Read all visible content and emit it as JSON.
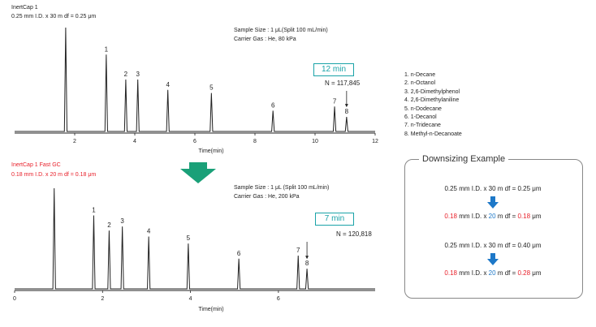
{
  "chart_data": [
    {
      "type": "line",
      "title": "InertCap 1",
      "subtitle": "0.25 mm I.D. x 30 m   df = 0.25 μm",
      "conditions": [
        "Sample Size   :  1 μL(Split 100 mL/min)",
        "Carrier Gas    :  He, 80 kPa"
      ],
      "xlabel": "Time(min)",
      "xlim": [
        0,
        12
      ],
      "xticks": [
        "2",
        "4",
        "6",
        "8",
        "10",
        "12"
      ],
      "analysis_time": "12 min",
      "plate_count": "N = 117,845",
      "solvent_peak": {
        "x": 1.7,
        "height": 1.0
      },
      "peaks": [
        {
          "label": "1",
          "x": 3.05,
          "height": 0.74
        },
        {
          "label": "2",
          "x": 3.7,
          "height": 0.5
        },
        {
          "label": "3",
          "x": 4.1,
          "height": 0.5
        },
        {
          "label": "4",
          "x": 5.1,
          "height": 0.4
        },
        {
          "label": "5",
          "x": 6.55,
          "height": 0.37
        },
        {
          "label": "6",
          "x": 8.6,
          "height": 0.2
        },
        {
          "label": "7",
          "x": 10.65,
          "height": 0.24
        },
        {
          "label": "8",
          "x": 11.05,
          "height": 0.14
        }
      ]
    },
    {
      "type": "line",
      "title": "InertCap 1 Fast GC",
      "subtitle": "0.18 mm I.D. x 20 m   df = 0.18 μm",
      "conditions": [
        "Sample Size   :  1 μL (Split 100 mL/min)",
        "Carrier Gas    :  He, 200 kPa"
      ],
      "xlabel": "Time(min)",
      "xlim": [
        0,
        8.2
      ],
      "xticks": [
        "0",
        "2",
        "4",
        "6"
      ],
      "analysis_time": "7 min",
      "plate_count": "N = 120,818",
      "solvent_peak": {
        "x": 0.9,
        "height": 1.0
      },
      "peaks": [
        {
          "label": "1",
          "x": 1.8,
          "height": 0.73
        },
        {
          "label": "2",
          "x": 2.15,
          "height": 0.58
        },
        {
          "label": "3",
          "x": 2.45,
          "height": 0.62
        },
        {
          "label": "4",
          "x": 3.05,
          "height": 0.52
        },
        {
          "label": "5",
          "x": 3.95,
          "height": 0.45
        },
        {
          "label": "6",
          "x": 5.1,
          "height": 0.3
        },
        {
          "label": "7",
          "x": 6.45,
          "height": 0.33
        },
        {
          "label": "8",
          "x": 6.65,
          "height": 0.2
        }
      ]
    }
  ],
  "legend_items": [
    "1. n-Decane",
    "2. n-Octanol",
    "3. 2,6-Dimethylphenol",
    "4. 2,6-Dimethylaniline",
    "5. n-Dodecane",
    "6. 1-Decanol",
    "7. n-Tridecane",
    "8. Methyl-n-Decanoate"
  ],
  "downsizing": {
    "title": "Downsizing Example",
    "ex1_from": "0.25 mm I.D. x 30 m df = 0.25 μm",
    "ex1_to": {
      "id": "0.18",
      "id_unit": " mm I.D. x ",
      "len": "20",
      "len_unit": " m df = ",
      "df": "0.18",
      "df_unit": " μm"
    },
    "ex2_from": "0.25 mm I.D. x 30 m df = 0.40 μm",
    "ex2_to": {
      "id": "0.18",
      "id_unit": " mm I.D. x ",
      "len": "20",
      "len_unit": " m df = ",
      "df": "0.28",
      "df_unit": " μm"
    }
  },
  "colors": {
    "red": "#e8202a",
    "teal": "#1aa3a8",
    "green_arrow": "#1aa078",
    "blue": "#1d78c8"
  }
}
